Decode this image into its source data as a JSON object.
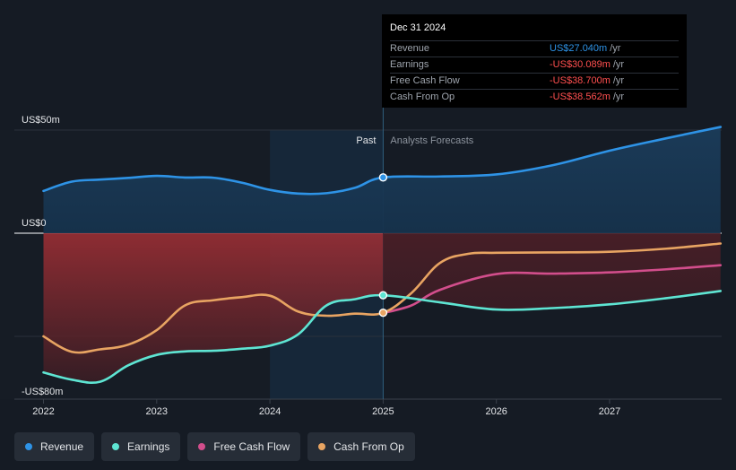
{
  "chart_data": {
    "type": "area",
    "x_range": [
      2021.75,
      2027.98
    ],
    "y_range": [
      -80,
      50
    ],
    "x_ticks": [
      {
        "value": 2022,
        "label": "2022"
      },
      {
        "value": 2023,
        "label": "2023"
      },
      {
        "value": 2024,
        "label": "2024"
      },
      {
        "value": 2025,
        "label": "2025"
      },
      {
        "value": 2026,
        "label": "2026"
      },
      {
        "value": 2027,
        "label": "2027"
      }
    ],
    "y_ticks": [
      {
        "value": 50,
        "label": "US$50m"
      },
      {
        "value": 0,
        "label": "US$0"
      },
      {
        "value": -80,
        "label": "-US$80m"
      }
    ],
    "gridlines": [
      50,
      -50
    ],
    "divider_x": 2025.0,
    "highlight_range": [
      2024.0,
      2025.0
    ],
    "past_label": "Past",
    "forecast_label": "Analysts Forecasts",
    "series": [
      {
        "name": "Revenue",
        "color": "#2e93e6",
        "points": [
          [
            2022.0,
            20.5
          ],
          [
            2022.25,
            25.0
          ],
          [
            2022.5,
            26.0
          ],
          [
            2022.75,
            26.8
          ],
          [
            2023.0,
            27.8
          ],
          [
            2023.25,
            27.0
          ],
          [
            2023.5,
            26.9
          ],
          [
            2023.75,
            24.5
          ],
          [
            2024.0,
            21.0
          ],
          [
            2024.25,
            19.2
          ],
          [
            2024.5,
            19.4
          ],
          [
            2024.75,
            22.0
          ],
          [
            2025.0,
            27.04
          ],
          [
            2025.5,
            27.5
          ],
          [
            2026.0,
            28.5
          ],
          [
            2026.5,
            33.0
          ],
          [
            2027.0,
            40.0
          ],
          [
            2027.5,
            46.0
          ],
          [
            2027.98,
            51.5
          ]
        ]
      },
      {
        "name": "Earnings",
        "color": "#5ee5d3",
        "points": [
          [
            2022.0,
            -67.5
          ],
          [
            2022.25,
            -71.0
          ],
          [
            2022.5,
            -72.0
          ],
          [
            2022.75,
            -64.0
          ],
          [
            2023.0,
            -59.0
          ],
          [
            2023.25,
            -57.3
          ],
          [
            2023.5,
            -57.0
          ],
          [
            2023.75,
            -56.0
          ],
          [
            2024.0,
            -54.5
          ],
          [
            2024.25,
            -49.0
          ],
          [
            2024.5,
            -35.0
          ],
          [
            2024.75,
            -32.0
          ],
          [
            2025.0,
            -30.089
          ],
          [
            2025.5,
            -33.5
          ],
          [
            2026.0,
            -37.0
          ],
          [
            2026.5,
            -36.3
          ],
          [
            2027.0,
            -34.5
          ],
          [
            2027.5,
            -31.5
          ],
          [
            2027.98,
            -28.0
          ]
        ]
      },
      {
        "name": "Free Cash Flow",
        "color": "#d24e8c",
        "points": [
          [
            2025.0,
            -38.7
          ],
          [
            2025.25,
            -35.0
          ],
          [
            2025.5,
            -27.5
          ],
          [
            2026.0,
            -19.8
          ],
          [
            2026.5,
            -19.6
          ],
          [
            2027.0,
            -19.0
          ],
          [
            2027.5,
            -17.5
          ],
          [
            2027.98,
            -15.5
          ]
        ]
      },
      {
        "name": "Cash From Op",
        "color": "#e8a462",
        "points": [
          [
            2022.0,
            -50.0
          ],
          [
            2022.25,
            -57.5
          ],
          [
            2022.5,
            -56.3
          ],
          [
            2022.75,
            -54.0
          ],
          [
            2023.0,
            -47.0
          ],
          [
            2023.25,
            -35.0
          ],
          [
            2023.5,
            -32.5
          ],
          [
            2023.75,
            -31.0
          ],
          [
            2024.0,
            -30.3
          ],
          [
            2024.25,
            -38.0
          ],
          [
            2024.5,
            -40.0
          ],
          [
            2024.75,
            -39.0
          ],
          [
            2025.0,
            -38.562
          ],
          [
            2025.25,
            -29.0
          ],
          [
            2025.5,
            -14.5
          ],
          [
            2025.75,
            -10.0
          ],
          [
            2026.0,
            -9.5
          ],
          [
            2026.5,
            -9.3
          ],
          [
            2027.0,
            -9.0
          ],
          [
            2027.5,
            -7.5
          ],
          [
            2027.98,
            -5.0
          ]
        ]
      }
    ],
    "markers": [
      {
        "series": "Revenue",
        "x": 2025.0,
        "y": 27.04
      },
      {
        "series": "Earnings",
        "x": 2025.0,
        "y": -30.089
      },
      {
        "series": "Cash From Op",
        "x": 2025.0,
        "y": -38.562
      }
    ]
  },
  "tooltip": {
    "title": "Dec 31 2024",
    "rows": [
      {
        "label": "Revenue",
        "value": "US$27.040m",
        "unit": "/yr",
        "color": "#2e93e6"
      },
      {
        "label": "Earnings",
        "value": "-US$30.089m",
        "unit": "/yr",
        "color": "#ff4f4f"
      },
      {
        "label": "Free Cash Flow",
        "value": "-US$38.700m",
        "unit": "/yr",
        "color": "#ff4f4f"
      },
      {
        "label": "Cash From Op",
        "value": "-US$38.562m",
        "unit": "/yr",
        "color": "#ff4f4f"
      }
    ]
  },
  "legend": [
    {
      "label": "Revenue",
      "color": "#2e93e6",
      "icon": "dot-icon"
    },
    {
      "label": "Earnings",
      "color": "#5ee5d3",
      "icon": "dot-icon"
    },
    {
      "label": "Free Cash Flow",
      "color": "#d24e8c",
      "icon": "dot-icon"
    },
    {
      "label": "Cash From Op",
      "color": "#e8a462",
      "icon": "dot-icon"
    }
  ]
}
